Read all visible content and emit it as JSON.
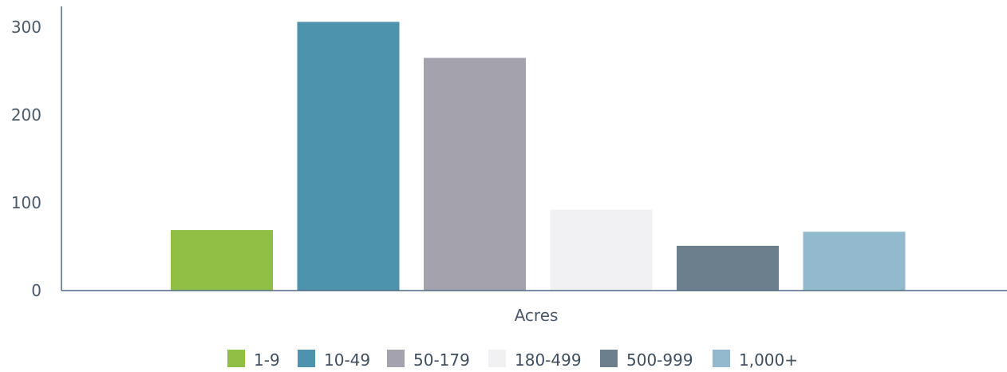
{
  "chart_data": {
    "type": "bar",
    "title": "",
    "xlabel": "Acres",
    "ylabel": "",
    "ylim": [
      0,
      320
    ],
    "yticks": [
      0,
      100,
      200,
      300
    ],
    "grid": false,
    "legend_position": "bottom",
    "categories": [
      "1-9",
      "10-49",
      "50-179",
      "180-499",
      "500-999",
      "1,000+"
    ],
    "values": [
      69,
      306,
      265,
      92,
      51,
      67
    ],
    "colors": [
      "#8fbf45",
      "#4e93ad",
      "#a4a3ad",
      "#f1f1f4",
      "#6b7f8d",
      "#93b9cf"
    ]
  }
}
